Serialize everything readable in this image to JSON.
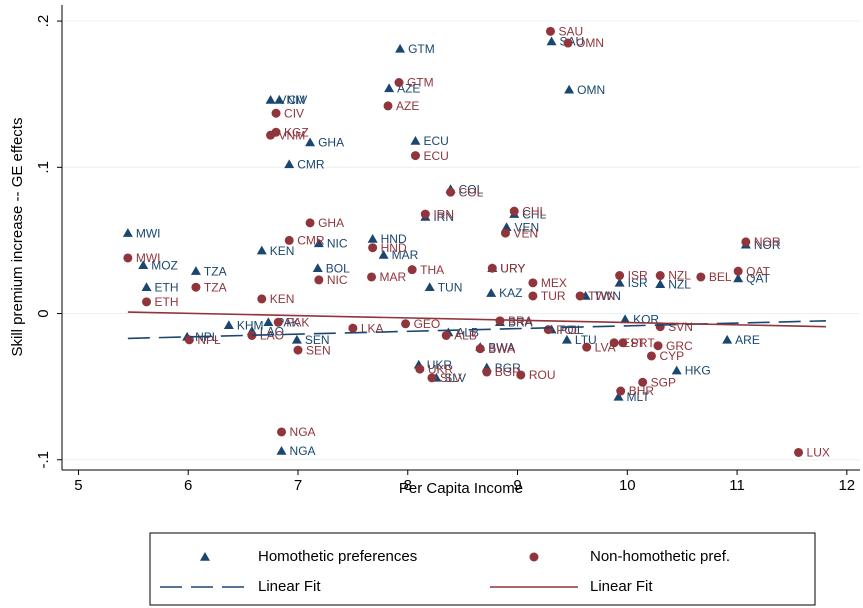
{
  "chart_data": {
    "type": "scatter",
    "xlabel": "Per Capita Income",
    "ylabel": "Skill premium increase -- GE effects",
    "xlim": [
      4.85,
      12.12
    ],
    "ylim": [
      -0.107,
      0.211
    ],
    "xticks": [
      5,
      6,
      7,
      8,
      9,
      10,
      11,
      12
    ],
    "yticks": [
      {
        "value": -0.1,
        "label": "-.1"
      },
      0,
      {
        "value": 0.1,
        "label": ".1"
      },
      {
        "value": 0.2,
        "label": ".2"
      }
    ],
    "grid": true,
    "legend": "bottom",
    "series": [
      {
        "name": "Homothetic preferences",
        "type": "scatter",
        "marker": "triangle",
        "color": "#1a476f",
        "labels": [
          "MWI",
          "GTM",
          "SAU",
          "OMN",
          "AZE",
          "VNM",
          "CIV",
          "GHA",
          "CMR",
          "ECU",
          "COL",
          "IRN",
          "CHL",
          "VEN",
          "KEN",
          "NIC",
          "HND",
          "MAR",
          "MOZ",
          "TZA",
          "ETH",
          "BOL",
          "TUN",
          "URY",
          "KAZ",
          "ISR",
          "NZL",
          "QAT",
          "NOR",
          "KHM",
          "LAO",
          "NPL",
          "SEN",
          "UKR",
          "SLV",
          "BGR",
          "HKG",
          "MLT",
          "NGA",
          "ARE",
          "BWA",
          "POL",
          "LTU",
          "KOR",
          "TWN",
          "PAK",
          "ALB",
          "BRA"
        ],
        "x": [
          5.45,
          7.93,
          9.31,
          9.47,
          7.83,
          6.75,
          6.83,
          7.11,
          6.92,
          8.07,
          8.39,
          8.16,
          8.97,
          8.9,
          6.67,
          7.19,
          7.68,
          7.78,
          5.59,
          6.07,
          5.62,
          7.18,
          8.2,
          8.77,
          8.76,
          9.93,
          10.3,
          11.01,
          11.08,
          6.37,
          6.58,
          5.99,
          6.99,
          8.1,
          8.26,
          8.72,
          10.45,
          9.92,
          6.85,
          10.91,
          8.66,
          9.31,
          9.45,
          9.98,
          9.62,
          6.73,
          8.37,
          8.84
        ],
        "values": [
          0.055,
          0.181,
          0.186,
          0.153,
          0.154,
          0.146,
          0.146,
          0.117,
          0.102,
          0.118,
          0.085,
          0.066,
          0.068,
          0.059,
          0.043,
          0.048,
          0.051,
          0.04,
          0.033,
          0.029,
          0.018,
          0.031,
          0.018,
          0.031,
          0.014,
          0.021,
          0.02,
          0.024,
          0.047,
          -0.008,
          -0.012,
          -0.016,
          -0.018,
          -0.035,
          -0.044,
          -0.037,
          -0.039,
          -0.057,
          -0.094,
          -0.018,
          -0.023,
          -0.011,
          -0.018,
          -0.004,
          0.012,
          -0.006,
          -0.013,
          -0.006
        ]
      },
      {
        "name": "Non-homothetic pref.",
        "type": "scatter",
        "marker": "circle",
        "color": "#90353b",
        "labels": [
          "MWI",
          "SAU",
          "OMN",
          "GTM",
          "AZE",
          "CIV",
          "KGZ",
          "VNM",
          "ECU",
          "COL",
          "IRN",
          "CHL",
          "VEN",
          "GHA",
          "CMR",
          "HND",
          "MAR",
          "THA",
          "NOR",
          "QAT",
          "BEL",
          "NZL",
          "ISR",
          "TZA",
          "ETH",
          "KEN",
          "NIC",
          "TUR",
          "MEX",
          "URY",
          "TWN",
          "LKA",
          "SEN",
          "GEO",
          "NPL",
          "LAO",
          "PAK",
          "ALB",
          "BWA",
          "UKR",
          "SLV",
          "BGR",
          "ROU",
          "NGA",
          "LUX",
          "CYP",
          "SGP",
          "BHR",
          "GRC",
          "PRT",
          "LVA",
          "EST",
          "BRA",
          "POL",
          "SVN"
        ],
        "x": [
          5.45,
          9.3,
          9.46,
          7.92,
          7.82,
          6.8,
          6.8,
          6.75,
          8.07,
          8.39,
          8.16,
          8.97,
          8.89,
          7.11,
          6.92,
          7.68,
          7.67,
          8.04,
          11.08,
          11.01,
          10.67,
          10.3,
          9.93,
          6.07,
          5.62,
          6.67,
          7.19,
          9.14,
          9.14,
          8.77,
          9.57,
          7.5,
          7.0,
          7.98,
          6.01,
          6.58,
          6.82,
          8.35,
          8.66,
          8.11,
          8.22,
          8.72,
          9.03,
          6.85,
          11.56,
          10.22,
          10.14,
          9.94,
          10.28,
          9.96,
          9.63,
          9.88,
          8.84,
          9.28,
          10.3
        ],
        "values": [
          0.038,
          0.193,
          0.185,
          0.158,
          0.142,
          0.137,
          0.124,
          0.122,
          0.108,
          0.083,
          0.068,
          0.07,
          0.055,
          0.062,
          0.05,
          0.045,
          0.025,
          0.03,
          0.049,
          0.029,
          0.025,
          0.026,
          0.026,
          0.018,
          0.008,
          0.01,
          0.023,
          0.012,
          0.021,
          0.031,
          0.012,
          -0.01,
          -0.025,
          -0.007,
          -0.018,
          -0.015,
          -0.006,
          -0.015,
          -0.024,
          -0.038,
          -0.044,
          -0.04,
          -0.042,
          -0.081,
          -0.095,
          -0.029,
          -0.047,
          -0.053,
          -0.022,
          -0.02,
          -0.023,
          -0.02,
          -0.005,
          -0.011,
          -0.009
        ]
      },
      {
        "name": "Linear Fit",
        "type": "line",
        "dash": "long-dash",
        "color": "#1a476f",
        "x": [
          5.45,
          11.81
        ],
        "values": [
          -0.017,
          -0.005
        ]
      },
      {
        "name": "Linear Fit",
        "type": "line",
        "dash": "solid",
        "color": "#90353b",
        "x": [
          5.45,
          11.81
        ],
        "values": [
          0.001,
          -0.009
        ]
      }
    ]
  }
}
